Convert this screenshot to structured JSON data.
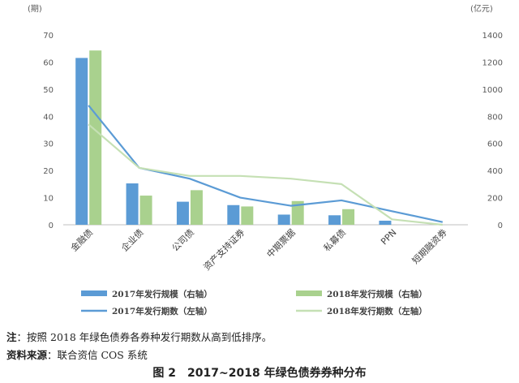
{
  "chart_data": {
    "type": "bar",
    "categories": [
      "金融债",
      "企业债",
      "公司债",
      "资产支持证券",
      "中期票据",
      "私募债",
      "PPN",
      "短期融资券"
    ],
    "left_axis_unit": "(期)",
    "right_axis_unit": "(亿元)",
    "left_ylim": [
      0,
      70
    ],
    "left_ticks": [
      0,
      10,
      20,
      30,
      40,
      50,
      60,
      70
    ],
    "right_ylim": [
      0,
      1400
    ],
    "right_ticks": [
      0,
      200,
      400,
      600,
      800,
      1000,
      1200,
      1400
    ],
    "series": [
      {
        "name": "2017年发行规模（右轴）",
        "type": "bar",
        "axis": "right",
        "color": "#5b9bd5",
        "values": [
          1230,
          305,
          170,
          145,
          75,
          70,
          30,
          0
        ]
      },
      {
        "name": "2018年发行规模（右轴）",
        "type": "bar",
        "axis": "right",
        "color": "#a9d18e",
        "values": [
          1285,
          215,
          255,
          135,
          175,
          115,
          0,
          0
        ]
      },
      {
        "name": "2017年发行期数（左轴）",
        "type": "line",
        "axis": "left",
        "color": "#5b9bd5",
        "values": [
          44,
          21,
          17,
          10,
          7,
          9,
          5,
          1
        ]
      },
      {
        "name": "2018年发行期数（左轴）",
        "type": "line",
        "axis": "left",
        "color": "#c5e0b4",
        "values": [
          37,
          21,
          18,
          18,
          17,
          15,
          2,
          0
        ]
      }
    ],
    "legend_position": "bottom"
  },
  "footer": {
    "note_label": "注",
    "note_text": "：按照 2018 年绿色债券各券种发行期数从高到低排序。",
    "source_label": "资料来源",
    "source_text": "：联合资信 COS 系统"
  },
  "caption": "图 2　2017~2018 年绿色债券券种分布"
}
